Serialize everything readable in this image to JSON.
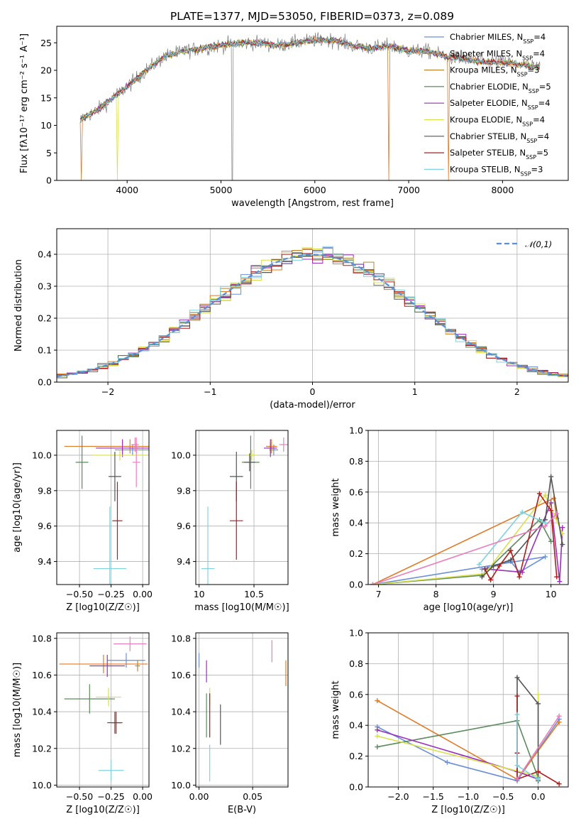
{
  "title": "PLATE=1377, MJD=53050, FIBERID=0373, z=0.089",
  "models": [
    {
      "label": "Chabrier MILES, N",
      "n": "4",
      "color": "#6a8fd8"
    },
    {
      "label": "Salpeter MILES, N",
      "n": "4",
      "color": "#e07b27"
    },
    {
      "label": "Kroupa MILES, N",
      "n": "3",
      "color": "#b5862e"
    },
    {
      "label": "Chabrier ELODIE, N",
      "n": "5",
      "color": "#5c8a5c"
    },
    {
      "label": "Salpeter ELODIE, N",
      "n": "4",
      "color": "#9b2fbd"
    },
    {
      "label": "Kroupa ELODIE, N",
      "n": "4",
      "color": "#d8e04a"
    },
    {
      "label": "Chabrier STELIB, N",
      "n": "4",
      "color": "#555555"
    },
    {
      "label": "Salpeter STELIB, N",
      "n": "5",
      "color": "#b01c1c"
    },
    {
      "label": "Kroupa STELIB, N",
      "n": "3",
      "color": "#7fd3dc"
    }
  ],
  "extra_colors": {
    "pink": "#e87fbf",
    "gray_data": "#7f7f7f"
  },
  "subscript": "SSP",
  "chart_data": [
    {
      "id": "spectrum",
      "type": "line",
      "xlabel": "wavelength [Angstrom, rest frame]",
      "ylabel": "Flux [fλ10⁻¹⁷ erg cm⁻² s⁻¹ A⁻¹]",
      "xlim": [
        3250,
        8700
      ],
      "ylim": [
        0,
        28
      ],
      "xticks": [
        4000,
        5000,
        6000,
        7000,
        8000
      ],
      "yticks": [
        0,
        5,
        10,
        15,
        20,
        25
      ],
      "continuum": {
        "x": [
          3500,
          3700,
          3850,
          4000,
          4200,
          4400,
          4600,
          4800,
          5000,
          5200,
          5400,
          5600,
          5800,
          6000,
          6200,
          6400,
          6600,
          6800,
          7000,
          7200,
          7400,
          7600,
          7800,
          8000,
          8200,
          8400
        ],
        "y": [
          11,
          13,
          15,
          17,
          20,
          22.5,
          23.5,
          24,
          24.5,
          25,
          25,
          24.5,
          25,
          25.5,
          25.5,
          24.5,
          24,
          24.5,
          23.5,
          23.5,
          22.5,
          22,
          21.5,
          21.5,
          21,
          20.5
        ]
      },
      "legend_position": "upper right"
    },
    {
      "id": "residuals",
      "type": "histogram",
      "xlabel": "(data-model)/error",
      "ylabel": "Normed distribution",
      "xlim": [
        -2.5,
        2.5
      ],
      "ylim": [
        0,
        0.48
      ],
      "xticks": [
        -2,
        -1,
        0,
        1,
        2
      ],
      "yticks": [
        0.0,
        0.1,
        0.2,
        0.3,
        0.4
      ],
      "bin_width": 0.1,
      "reference_curve": {
        "label": "N(0,1)",
        "mean": 0,
        "sigma": 1
      },
      "grid": true
    },
    {
      "id": "age_vs_Z",
      "type": "scatter",
      "xlabel": "Z [log10(Z/Z☉)]",
      "ylabel": "age  [log10(age/yr)]",
      "xlim": [
        -0.68,
        0.05
      ],
      "ylim": [
        9.27,
        10.14
      ],
      "xticks": [
        -0.5,
        -0.25,
        0.0
      ],
      "yticks": [
        9.4,
        9.6,
        9.8,
        10.0
      ],
      "points": [
        {
          "model": 0,
          "x": -0.08,
          "xerr": 0.14,
          "y": 10.03,
          "yerr": 0.03
        },
        {
          "model": 1,
          "x": -0.1,
          "xerr": 0.52,
          "y": 10.05,
          "yerr": 0.04
        },
        {
          "model": 2,
          "x": -0.05,
          "xerr": 0.02,
          "y": 10.04,
          "yerr": 0.03
        },
        {
          "model": 3,
          "x": -0.48,
          "xerr": 0.05,
          "y": 9.96,
          "yerr": 0.15
        },
        {
          "model": 4,
          "x": -0.16,
          "xerr": 0.21,
          "y": 10.04,
          "yerr": 0.05
        },
        {
          "model": 5,
          "x": -0.18,
          "xerr": 0.22,
          "y": 10.0,
          "yerr": 0.03
        },
        {
          "model": 6,
          "x": -0.22,
          "xerr": 0.05,
          "y": 9.88,
          "yerr": 0.14
        },
        {
          "model": 7,
          "x": -0.2,
          "xerr": 0.04,
          "y": 9.63,
          "yerr": 0.22
        },
        {
          "model": 8,
          "x": -0.26,
          "xerr": 0.13,
          "y": 9.36,
          "yerr": 0.35
        },
        {
          "model": -1,
          "x": -0.05,
          "xerr": 0.03,
          "y": 9.96,
          "yerr": 0.14
        },
        {
          "model": -2,
          "x": -0.06,
          "xerr": 0.03,
          "y": 10.06,
          "yerr": 0.04
        }
      ],
      "grid": true
    },
    {
      "id": "age_vs_mass",
      "type": "scatter",
      "xlabel": "mass [log10(M/M☉)]",
      "ylabel": "",
      "xlim": [
        9.97,
        10.81
      ],
      "ylim": [
        9.27,
        10.14
      ],
      "xticks": [
        10.0,
        10.5
      ],
      "yticks": [
        9.4,
        9.6,
        9.8,
        10.0
      ],
      "points": [
        {
          "model": 0,
          "x": 10.68,
          "xerr": 0.04,
          "y": 10.03,
          "yerr": 0.03
        },
        {
          "model": 1,
          "x": 10.66,
          "xerr": 0.05,
          "y": 10.05,
          "yerr": 0.04
        },
        {
          "model": 2,
          "x": 10.65,
          "xerr": 0.03,
          "y": 10.04,
          "yerr": 0.03
        },
        {
          "model": 3,
          "x": 10.47,
          "xerr": 0.08,
          "y": 9.96,
          "yerr": 0.15
        },
        {
          "model": 4,
          "x": 10.65,
          "xerr": 0.06,
          "y": 10.04,
          "yerr": 0.05
        },
        {
          "model": 5,
          "x": 10.48,
          "xerr": 0.05,
          "y": 10.0,
          "yerr": 0.03
        },
        {
          "model": 6,
          "x": 10.34,
          "xerr": 0.06,
          "y": 9.88,
          "yerr": 0.14
        },
        {
          "model": 7,
          "x": 10.34,
          "xerr": 0.06,
          "y": 9.63,
          "yerr": 0.22
        },
        {
          "model": 8,
          "x": 10.08,
          "xerr": 0.06,
          "y": 9.36,
          "yerr": 0.35
        },
        {
          "model": -2,
          "x": 10.77,
          "xerr": 0.04,
          "y": 10.06,
          "yerr": 0.04
        },
        {
          "model": 6,
          "x": 10.46,
          "xerr": 0.05,
          "y": 9.96,
          "yerr": 0.05
        }
      ],
      "grid": true
    },
    {
      "id": "weight_vs_age",
      "type": "line",
      "xlabel": "age  [log10(age/yr)]",
      "ylabel": "mass weight",
      "xlim": [
        6.82,
        10.3
      ],
      "ylim": [
        0,
        1.0
      ],
      "xticks": [
        7,
        8,
        9,
        10
      ],
      "yticks": [
        0.0,
        0.2,
        0.4,
        0.6,
        0.8,
        1.0
      ],
      "series": [
        {
          "model": 0,
          "x": [
            6.9,
            9.9,
            9.45,
            9.3,
            8.8
          ],
          "y": [
            0.0,
            0.18,
            0.08,
            0.15,
            0.1
          ]
        },
        {
          "model": 1,
          "x": [
            6.9,
            10.05,
            10.1
          ],
          "y": [
            0.0,
            0.56,
            0.43
          ]
        },
        {
          "model": 3,
          "x": [
            6.9,
            8.8,
            9.8,
            10.0
          ],
          "y": [
            0.0,
            0.06,
            0.42,
            0.28
          ]
        },
        {
          "model": 4,
          "x": [
            8.9,
            9.5,
            10.0,
            10.15,
            10.2
          ],
          "y": [
            0.1,
            0.08,
            0.53,
            0.02,
            0.37
          ]
        },
        {
          "model": 5,
          "x": [
            6.9,
            8.85,
            9.9,
            10.2
          ],
          "y": [
            0.0,
            0.07,
            0.58,
            0.33
          ]
        },
        {
          "model": 6,
          "x": [
            8.8,
            9.0,
            9.3,
            9.9,
            10.0,
            10.2
          ],
          "y": [
            0.05,
            0.12,
            0.16,
            0.42,
            0.7,
            0.26
          ]
        },
        {
          "model": 7,
          "x": [
            8.85,
            8.95,
            9.1,
            9.3,
            9.45,
            9.8,
            10.0,
            10.1
          ],
          "y": [
            0.1,
            0.03,
            0.12,
            0.22,
            0.05,
            0.59,
            0.48,
            0.05
          ]
        },
        {
          "model": 8,
          "x": [
            8.75,
            9.5,
            9.9
          ],
          "y": [
            0.13,
            0.47,
            0.4
          ]
        },
        {
          "model": -1,
          "x": [
            6.9,
            9.9,
            10.1
          ],
          "y": [
            0.0,
            0.38,
            0.46
          ]
        }
      ],
      "grid": true
    },
    {
      "id": "mass_vs_Z",
      "type": "scatter",
      "xlabel": "Z [log10(Z/Z☉)]",
      "ylabel": "mass [log10(M/M☉)]",
      "xlim": [
        -0.68,
        0.05
      ],
      "ylim": [
        9.99,
        10.83
      ],
      "xticks": [
        -0.5,
        -0.25,
        0.0
      ],
      "yticks": [
        10.0,
        10.2,
        10.4,
        10.6,
        10.8
      ],
      "points": [
        {
          "model": 0,
          "x": -0.13,
          "xerr": 0.15,
          "y": 10.68,
          "yerr": 0.04
        },
        {
          "model": 1,
          "x": -0.31,
          "xerr": 0.35,
          "y": 10.66,
          "yerr": 0.05
        },
        {
          "model": 2,
          "x": -0.04,
          "xerr": 0.02,
          "y": 10.65,
          "yerr": 0.03
        },
        {
          "model": 3,
          "x": -0.42,
          "xerr": 0.2,
          "y": 10.47,
          "yerr": 0.08
        },
        {
          "model": 4,
          "x": -0.28,
          "xerr": 0.14,
          "y": 10.65,
          "yerr": 0.06
        },
        {
          "model": 5,
          "x": -0.27,
          "xerr": 0.1,
          "y": 10.48,
          "yerr": 0.05
        },
        {
          "model": 6,
          "x": -0.21,
          "xerr": 0.04,
          "y": 10.34,
          "yerr": 0.06
        },
        {
          "model": 7,
          "x": -0.22,
          "xerr": 0.06,
          "y": 10.34,
          "yerr": 0.06
        },
        {
          "model": 8,
          "x": -0.25,
          "xerr": 0.1,
          "y": 10.08,
          "yerr": 0.06
        },
        {
          "model": -2,
          "x": -0.1,
          "xerr": 0.13,
          "y": 10.77,
          "yerr": 0.04
        }
      ],
      "grid": true
    },
    {
      "id": "mass_vs_ebv",
      "type": "scatter",
      "xlabel": "E(B-V)",
      "ylabel": "",
      "xlim": [
        -0.003,
        0.083
      ],
      "ylim": [
        9.99,
        10.83
      ],
      "xticks": [
        0.0,
        0.05
      ],
      "yticks": [
        10.0,
        10.2,
        10.4,
        10.6,
        10.8
      ],
      "points": [
        {
          "model": 0,
          "x": 0.0,
          "xerr": 0.0,
          "y": 10.68,
          "yerr": 0.04
        },
        {
          "model": 1,
          "x": 0.081,
          "xerr": 0.0,
          "y": 10.61,
          "yerr": 0.07
        },
        {
          "model": 3,
          "x": 0.007,
          "xerr": 0.0,
          "y": 10.38,
          "yerr": 0.12
        },
        {
          "model": 4,
          "x": 0.007,
          "xerr": 0.0,
          "y": 10.62,
          "yerr": 0.06
        },
        {
          "model": 5,
          "x": 0.01,
          "xerr": 0.0,
          "y": 10.48,
          "yerr": 0.05
        },
        {
          "model": 6,
          "x": 0.02,
          "xerr": 0.0,
          "y": 10.33,
          "yerr": 0.11
        },
        {
          "model": 7,
          "x": 0.01,
          "xerr": 0.0,
          "y": 10.38,
          "yerr": 0.12
        },
        {
          "model": 8,
          "x": 0.01,
          "xerr": 0.0,
          "y": 10.12,
          "yerr": 0.1
        },
        {
          "model": -2,
          "x": 0.068,
          "xerr": 0.0,
          "y": 10.73,
          "yerr": 0.06
        }
      ],
      "grid": true
    },
    {
      "id": "weight_vs_Z",
      "type": "line",
      "xlabel": "Z [log10(Z/Z☉)]",
      "ylabel": "mass weight",
      "xlim": [
        -2.43,
        0.43
      ],
      "ylim": [
        0,
        1.0
      ],
      "xticks": [
        -2.0,
        -1.5,
        -1.0,
        -0.5,
        0.0
      ],
      "yticks": [
        0.0,
        0.2,
        0.4,
        0.6,
        0.8,
        1.0
      ],
      "series": [
        {
          "model": 0,
          "x": [
            -2.3,
            -1.3,
            -0.3,
            0.3
          ],
          "y": [
            0.39,
            0.16,
            0.04,
            0.44
          ]
        },
        {
          "model": 1,
          "x": [
            -2.3,
            -0.3,
            0.3
          ],
          "y": [
            0.56,
            0.05,
            0.42
          ]
        },
        {
          "model": 3,
          "x": [
            -2.3,
            -0.3,
            0.0
          ],
          "y": [
            0.26,
            0.43,
            0.06
          ]
        },
        {
          "model": 4,
          "x": [
            -2.3,
            -0.3,
            0.0
          ],
          "y": [
            0.37,
            0.1,
            0.05
          ]
        },
        {
          "model": 5,
          "x": [
            -2.3,
            0.0,
            0.0
          ],
          "y": [
            0.33,
            0.07,
            0.6
          ]
        },
        {
          "model": 6,
          "x": [
            -0.3,
            -0.3,
            0.0,
            0.0
          ],
          "y": [
            0.05,
            0.71,
            0.54,
            0.04
          ]
        },
        {
          "model": 7,
          "x": [
            -0.3,
            -0.3,
            -0.3,
            0.0,
            0.3
          ],
          "y": [
            0.59,
            0.22,
            0.05,
            0.1,
            0.02
          ]
        },
        {
          "model": 8,
          "x": [
            -0.3,
            -0.3,
            0.0
          ],
          "y": [
            0.47,
            0.14,
            0.05
          ]
        },
        {
          "model": -1,
          "x": [
            -0.3,
            0.3
          ],
          "y": [
            0.05,
            0.46
          ]
        }
      ],
      "grid": true
    }
  ]
}
